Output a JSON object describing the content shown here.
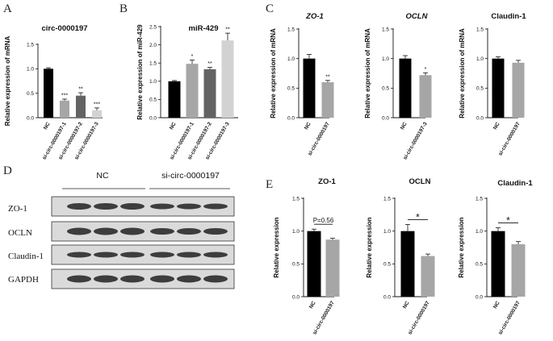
{
  "panel_labels": [
    "A",
    "B",
    "C",
    "D",
    "E"
  ],
  "colors": {
    "black": "#000000",
    "dark_gray": "#636363",
    "gray": "#a6a6a6",
    "light_gray": "#d2d2d2",
    "blot_band": "#303030",
    "blot_bg": "#dadada"
  },
  "chart_data": [
    {
      "id": "A",
      "type": "bar",
      "title": "circ-0000197",
      "ylabel": "Relative expression of mRNA",
      "categories": [
        "NC",
        "si-circ-0000197-1",
        "si-circ-0000197-2",
        "si-circ-0000197-3"
      ],
      "values": [
        1.0,
        0.35,
        0.45,
        0.15
      ],
      "errors": [
        0.02,
        0.03,
        0.06,
        0.05
      ],
      "significance": [
        "",
        "***",
        "**",
        "***"
      ],
      "bar_colors": [
        "#000000",
        "#a6a6a6",
        "#636363",
        "#d2d2d2"
      ],
      "ylim": [
        0,
        1.5
      ],
      "yticks": [
        0.0,
        0.5,
        1.0,
        1.5
      ]
    },
    {
      "id": "B",
      "type": "bar",
      "title": "miR-429",
      "ylabel": "Relative expression of miR-429",
      "categories": [
        "NC",
        "si-circ-0000197-1",
        "si-circ-0000197-2",
        "si-circ-0000197-3"
      ],
      "values": [
        1.0,
        1.48,
        1.33,
        2.12
      ],
      "errors": [
        0.02,
        0.1,
        0.05,
        0.2
      ],
      "significance": [
        "",
        "*",
        "**",
        "**"
      ],
      "bar_colors": [
        "#000000",
        "#a6a6a6",
        "#636363",
        "#d2d2d2"
      ],
      "ylim": [
        0,
        2.5
      ],
      "yticks": [
        0.0,
        0.5,
        1.0,
        1.5,
        2.0,
        2.5
      ]
    },
    {
      "id": "C1",
      "type": "bar",
      "title": "ZO-1",
      "title_italic": true,
      "ylabel": "Relative expression of mRNA",
      "categories": [
        "NC",
        "si-circ-0000197"
      ],
      "values": [
        1.0,
        0.6
      ],
      "errors": [
        0.07,
        0.03
      ],
      "significance": [
        "",
        "**"
      ],
      "bar_colors": [
        "#000000",
        "#a6a6a6"
      ],
      "ylim": [
        0,
        1.5
      ],
      "yticks": [
        0.0,
        0.5,
        1.0,
        1.5
      ]
    },
    {
      "id": "C2",
      "type": "bar",
      "title": "OCLN",
      "title_italic": true,
      "ylabel": "Relative expression of mRNA",
      "categories": [
        "NC",
        "si-circ-0000197-3"
      ],
      "values": [
        1.0,
        0.72
      ],
      "errors": [
        0.05,
        0.04
      ],
      "significance": [
        "",
        "*"
      ],
      "bar_colors": [
        "#000000",
        "#a6a6a6"
      ],
      "ylim": [
        0,
        1.5
      ],
      "yticks": [
        0.0,
        0.5,
        1.0,
        1.5
      ]
    },
    {
      "id": "C3",
      "type": "bar",
      "title": "Claudin-1",
      "ylabel": "Relative expression of mRNA",
      "categories": [
        "NC",
        "si-circ-0000197"
      ],
      "values": [
        1.0,
        0.93
      ],
      "errors": [
        0.03,
        0.04
      ],
      "significance": [
        "",
        ""
      ],
      "bar_colors": [
        "#000000",
        "#a6a6a6"
      ],
      "ylim": [
        0,
        1.5
      ],
      "yticks": [
        0.0,
        0.5,
        1.0,
        1.5
      ]
    },
    {
      "id": "E1",
      "type": "bar",
      "title": "ZO-1",
      "ylabel": "Relative expression",
      "categories": [
        "NC",
        "si-circ-0000197"
      ],
      "values": [
        1.0,
        0.87
      ],
      "errors": [
        0.03,
        0.02
      ],
      "bar_colors": [
        "#000000",
        "#a6a6a6"
      ],
      "comparison": "P=0.56",
      "ylim": [
        0,
        1.5
      ],
      "yticks": [
        0.0,
        0.5,
        1.0,
        1.5
      ]
    },
    {
      "id": "E2",
      "type": "bar",
      "title": "OCLN",
      "ylabel": "Relative expression",
      "categories": [
        "NC",
        "si-circ-0000197"
      ],
      "values": [
        1.0,
        0.62
      ],
      "errors": [
        0.1,
        0.03
      ],
      "bar_colors": [
        "#000000",
        "#a6a6a6"
      ],
      "comparison": "*",
      "ylim": [
        0,
        1.5
      ],
      "yticks": [
        0.0,
        0.5,
        1.0,
        1.5
      ]
    },
    {
      "id": "E3",
      "type": "bar",
      "title": "Claudin-1",
      "ylabel": "Relative expression",
      "categories": [
        "NC",
        "si-circ-0000197"
      ],
      "values": [
        1.0,
        0.8
      ],
      "errors": [
        0.05,
        0.04
      ],
      "bar_colors": [
        "#000000",
        "#a6a6a6"
      ],
      "comparison": "*",
      "ylim": [
        0,
        1.5
      ],
      "yticks": [
        0.0,
        0.5,
        1.0,
        1.5
      ]
    }
  ],
  "western_blot": {
    "groups": [
      "NC",
      "si-circ-0000197"
    ],
    "rows": [
      "ZO-1",
      "OCLN",
      "Claudin-1",
      "GAPDH"
    ],
    "lanes_per_group": 3
  }
}
